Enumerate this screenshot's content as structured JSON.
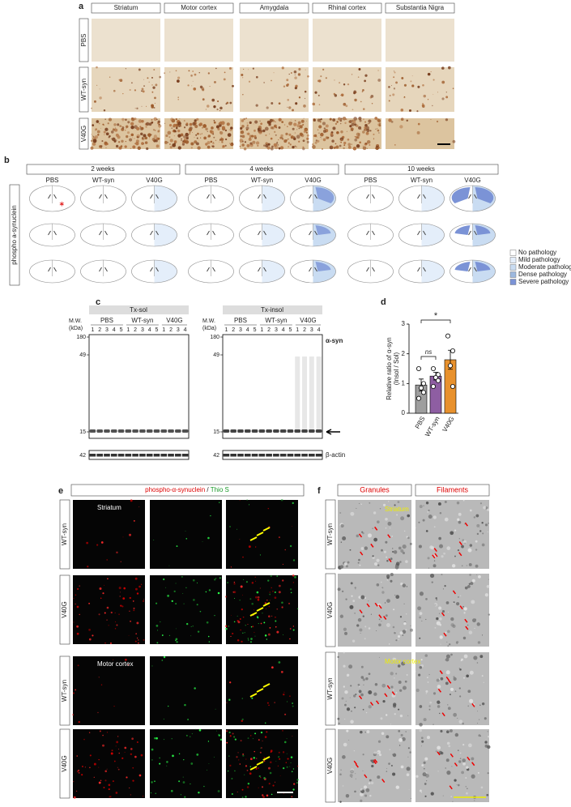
{
  "panel_a": {
    "label": "a",
    "columns": [
      "Striatum",
      "Motor cortex",
      "Amygdala",
      "Rhinal cortex",
      "Substantia Nigra"
    ],
    "rows": [
      "PBS",
      "WT-syn",
      "V40G"
    ]
  },
  "panel_b": {
    "label": "b",
    "groups": [
      {
        "title": "2 weeks",
        "conditions": [
          "PBS",
          "WT-syn",
          "V40G"
        ]
      },
      {
        "title": "4 weeks",
        "conditions": [
          "PBS",
          "WT-syn",
          "V40G"
        ]
      },
      {
        "title": "10 weeks",
        "conditions": [
          "PBS",
          "WT-syn",
          "V40G"
        ]
      }
    ],
    "side_label": "phospho a-synuclein",
    "legend": [
      "No pathology",
      "Mild pathology",
      "Moderate pathology",
      "Dense pathology",
      "Severe pathology"
    ],
    "legend_colors": [
      "#ffffff",
      "#e4eefa",
      "#c9dcf2",
      "#9db8de",
      "#7b93d6"
    ]
  },
  "panel_c": {
    "label": "c",
    "mw_label": "M.W.",
    "mw_unit": "(kDa)",
    "mw_markers": [
      180,
      49,
      15
    ],
    "actin_marker": 42,
    "band_label": "α-syn",
    "loading_label": "β-actin",
    "blots": [
      {
        "title": "Tx-sol",
        "groups": [
          "PBS",
          "WT-syn",
          "V40G"
        ],
        "lanes": [
          [
            1,
            2,
            3,
            4,
            5
          ],
          [
            1,
            2,
            3,
            4,
            5
          ],
          [
            1,
            2,
            3,
            4
          ]
        ]
      },
      {
        "title": "Tx-insol",
        "groups": [
          "PBS",
          "WT-syn",
          "V40G"
        ],
        "lanes": [
          [
            1,
            2,
            3,
            4,
            5
          ],
          [
            1,
            2,
            3,
            4,
            5
          ],
          [
            1,
            2,
            3,
            4
          ]
        ]
      }
    ]
  },
  "chart_data": {
    "type": "bar",
    "label": "d",
    "ylabel": [
      "Relative ratio of α-syn",
      "(Insol / Sol)"
    ],
    "categories": [
      "PBS",
      "WT-syn",
      "V40G"
    ],
    "values": [
      0.95,
      1.25,
      1.8
    ],
    "errors": [
      0.2,
      0.13,
      0.32
    ],
    "colors": [
      "#9e9e9e",
      "#8e5ea2",
      "#e8912d"
    ],
    "points": [
      [
        1.5,
        1.0,
        0.85,
        0.7,
        0.5
      ],
      [
        1.5,
        1.3,
        1.2,
        1.1,
        0.9
      ],
      [
        2.6,
        2.1,
        1.6,
        0.9
      ]
    ],
    "ylim": [
      0,
      3
    ],
    "yticks": [
      0,
      1,
      2,
      3
    ],
    "annotations": [
      "ns",
      "*"
    ]
  },
  "panel_e": {
    "label": "e",
    "stain_a": "phospho-α-synuclein",
    "separator": "/",
    "stain_b": "Thio S",
    "rows": [
      "WT-syn",
      "V40G",
      "WT-syn",
      "V40G"
    ],
    "regions": [
      "Striatum",
      "Motor cortex"
    ]
  },
  "panel_f": {
    "label": "f",
    "columns": [
      "Granules",
      "Filaments"
    ],
    "rows": [
      "WT-syn",
      "V40G",
      "WT-syn",
      "V40G"
    ],
    "regions": [
      "Striatum",
      "Motor cortex"
    ]
  }
}
